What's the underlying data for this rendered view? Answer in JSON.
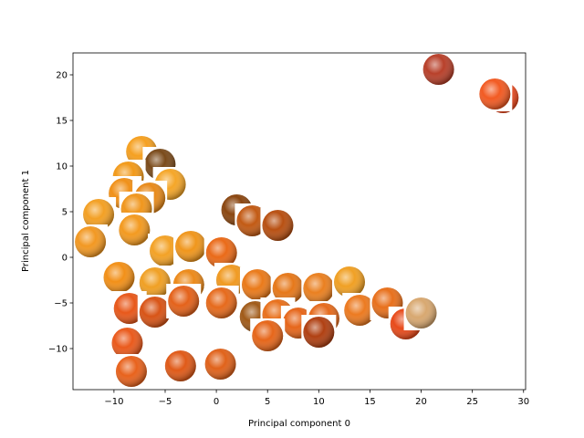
{
  "chart_data": {
    "type": "scatter",
    "xlabel": "Principal component 0",
    "ylabel": "Principal component 1",
    "xlim": [
      -14,
      30.2
    ],
    "ylim": [
      -14.5,
      22.4
    ],
    "x_ticks": [
      -10,
      -5,
      0,
      5,
      10,
      15,
      20,
      25,
      30
    ],
    "y_ticks": [
      -10,
      -5,
      0,
      5,
      10,
      15,
      20
    ],
    "x_tick_labels": [
      "−10",
      "−5",
      "0",
      "5",
      "10",
      "15",
      "20",
      "25",
      "30"
    ],
    "y_tick_labels": [
      "−10",
      "−5",
      "0",
      "5",
      "10",
      "15",
      "20"
    ],
    "grid": false,
    "marker": "fruit-thumbnail-image",
    "points": [
      {
        "x": 21.7,
        "y": 20.6,
        "color": "#b8402a"
      },
      {
        "x": 28.0,
        "y": 17.5,
        "color": "#f04a1e"
      },
      {
        "x": 27.2,
        "y": 17.9,
        "color": "#f25a22"
      },
      {
        "x": -7.3,
        "y": 11.6,
        "color": "#f5a020"
      },
      {
        "x": -5.5,
        "y": 10.2,
        "color": "#7a4a1a"
      },
      {
        "x": -8.6,
        "y": 8.8,
        "color": "#f29a1a"
      },
      {
        "x": -4.5,
        "y": 8.0,
        "color": "#f5a628"
      },
      {
        "x": -9.0,
        "y": 7.0,
        "color": "#f09018"
      },
      {
        "x": -6.5,
        "y": 6.5,
        "color": "#e88a1a"
      },
      {
        "x": -11.5,
        "y": 4.7,
        "color": "#f3a024"
      },
      {
        "x": -7.8,
        "y": 5.3,
        "color": "#f0961c"
      },
      {
        "x": 2.0,
        "y": 5.2,
        "color": "#8a4610"
      },
      {
        "x": 3.5,
        "y": 4.0,
        "color": "#c25a14"
      },
      {
        "x": 6.0,
        "y": 3.5,
        "color": "#b85012"
      },
      {
        "x": -8.0,
        "y": 3.0,
        "color": "#f39a20"
      },
      {
        "x": -12.3,
        "y": 1.7,
        "color": "#f29822"
      },
      {
        "x": -5.0,
        "y": 0.7,
        "color": "#f3a226"
      },
      {
        "x": -2.5,
        "y": 1.2,
        "color": "#f0961c"
      },
      {
        "x": 0.5,
        "y": 0.5,
        "color": "#ea6a18"
      },
      {
        "x": -9.5,
        "y": -2.2,
        "color": "#f29018"
      },
      {
        "x": -6.0,
        "y": -2.8,
        "color": "#f0a024"
      },
      {
        "x": -2.7,
        "y": -3.0,
        "color": "#ec8a1a"
      },
      {
        "x": 1.5,
        "y": -2.5,
        "color": "#f09a22"
      },
      {
        "x": 4.0,
        "y": -3.0,
        "color": "#ea7a1a"
      },
      {
        "x": 7.0,
        "y": -3.4,
        "color": "#e6781a"
      },
      {
        "x": 10.0,
        "y": -3.4,
        "color": "#ea8020"
      },
      {
        "x": 13.0,
        "y": -2.7,
        "color": "#f0a024"
      },
      {
        "x": -8.5,
        "y": -5.6,
        "color": "#e8581a"
      },
      {
        "x": -6.0,
        "y": -6.0,
        "color": "#d85416"
      },
      {
        "x": -3.2,
        "y": -4.8,
        "color": "#e4621a"
      },
      {
        "x": 0.5,
        "y": -5.0,
        "color": "#e66a1c"
      },
      {
        "x": 3.8,
        "y": -6.5,
        "color": "#a05a18"
      },
      {
        "x": 6.0,
        "y": -6.3,
        "color": "#e8701c"
      },
      {
        "x": 8.0,
        "y": -7.2,
        "color": "#e6661a"
      },
      {
        "x": 10.5,
        "y": -6.7,
        "color": "#e56a1c"
      },
      {
        "x": 14.0,
        "y": -5.8,
        "color": "#ec7a20"
      },
      {
        "x": 16.7,
        "y": -5.0,
        "color": "#e8701c"
      },
      {
        "x": 18.5,
        "y": -7.3,
        "color": "#e84a1a"
      },
      {
        "x": 20.0,
        "y": -6.1,
        "color": "#d8a870"
      },
      {
        "x": 5.0,
        "y": -8.6,
        "color": "#e6661a"
      },
      {
        "x": 10.0,
        "y": -8.2,
        "color": "#b04012"
      },
      {
        "x": -8.7,
        "y": -9.4,
        "color": "#ea5a1c"
      },
      {
        "x": -8.3,
        "y": -12.5,
        "color": "#e8621c"
      },
      {
        "x": -3.5,
        "y": -11.9,
        "color": "#e05a18"
      },
      {
        "x": 0.4,
        "y": -11.7,
        "color": "#e0621a"
      }
    ]
  }
}
